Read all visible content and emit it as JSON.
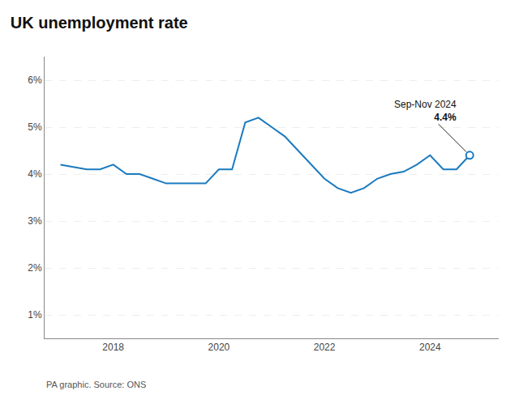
{
  "chart_data": {
    "type": "line",
    "title": "UK unemployment rate",
    "source": "PA graphic. Source: ONS",
    "annotation": {
      "label": "Sep-Nov 2024",
      "value": "4.4%"
    },
    "color": "#1a7abf",
    "grid": "y",
    "x": [
      2017.0,
      2017.25,
      2017.5,
      2017.75,
      2018.0,
      2018.25,
      2018.5,
      2018.75,
      2019.0,
      2019.25,
      2019.5,
      2019.75,
      2020.0,
      2020.25,
      2020.5,
      2020.75,
      2021.0,
      2021.25,
      2021.5,
      2021.75,
      2022.0,
      2022.25,
      2022.5,
      2022.75,
      2023.0,
      2023.25,
      2023.5,
      2023.75,
      2024.0,
      2024.25,
      2024.5,
      2024.75
    ],
    "values": [
      4.2,
      4.15,
      4.1,
      4.1,
      4.2,
      4.0,
      4.0,
      3.9,
      3.8,
      3.8,
      3.8,
      3.8,
      4.1,
      4.1,
      5.1,
      5.2,
      5.0,
      4.8,
      4.5,
      4.2,
      3.9,
      3.7,
      3.6,
      3.7,
      3.9,
      4.0,
      4.05,
      4.2,
      4.4,
      4.1,
      4.1,
      4.4
    ],
    "xlim": [
      2016.7,
      2025.3
    ],
    "xticks": [
      2018,
      2020,
      2022,
      2024
    ],
    "ylim": [
      0.5,
      6.5
    ],
    "yticks": [
      {
        "value": 1,
        "label": "1%"
      },
      {
        "value": 2,
        "label": "2%"
      },
      {
        "value": 3,
        "label": "3%"
      },
      {
        "value": 4,
        "label": "4%"
      },
      {
        "value": 5,
        "label": "5%"
      },
      {
        "value": 6,
        "label": "6%"
      }
    ]
  }
}
